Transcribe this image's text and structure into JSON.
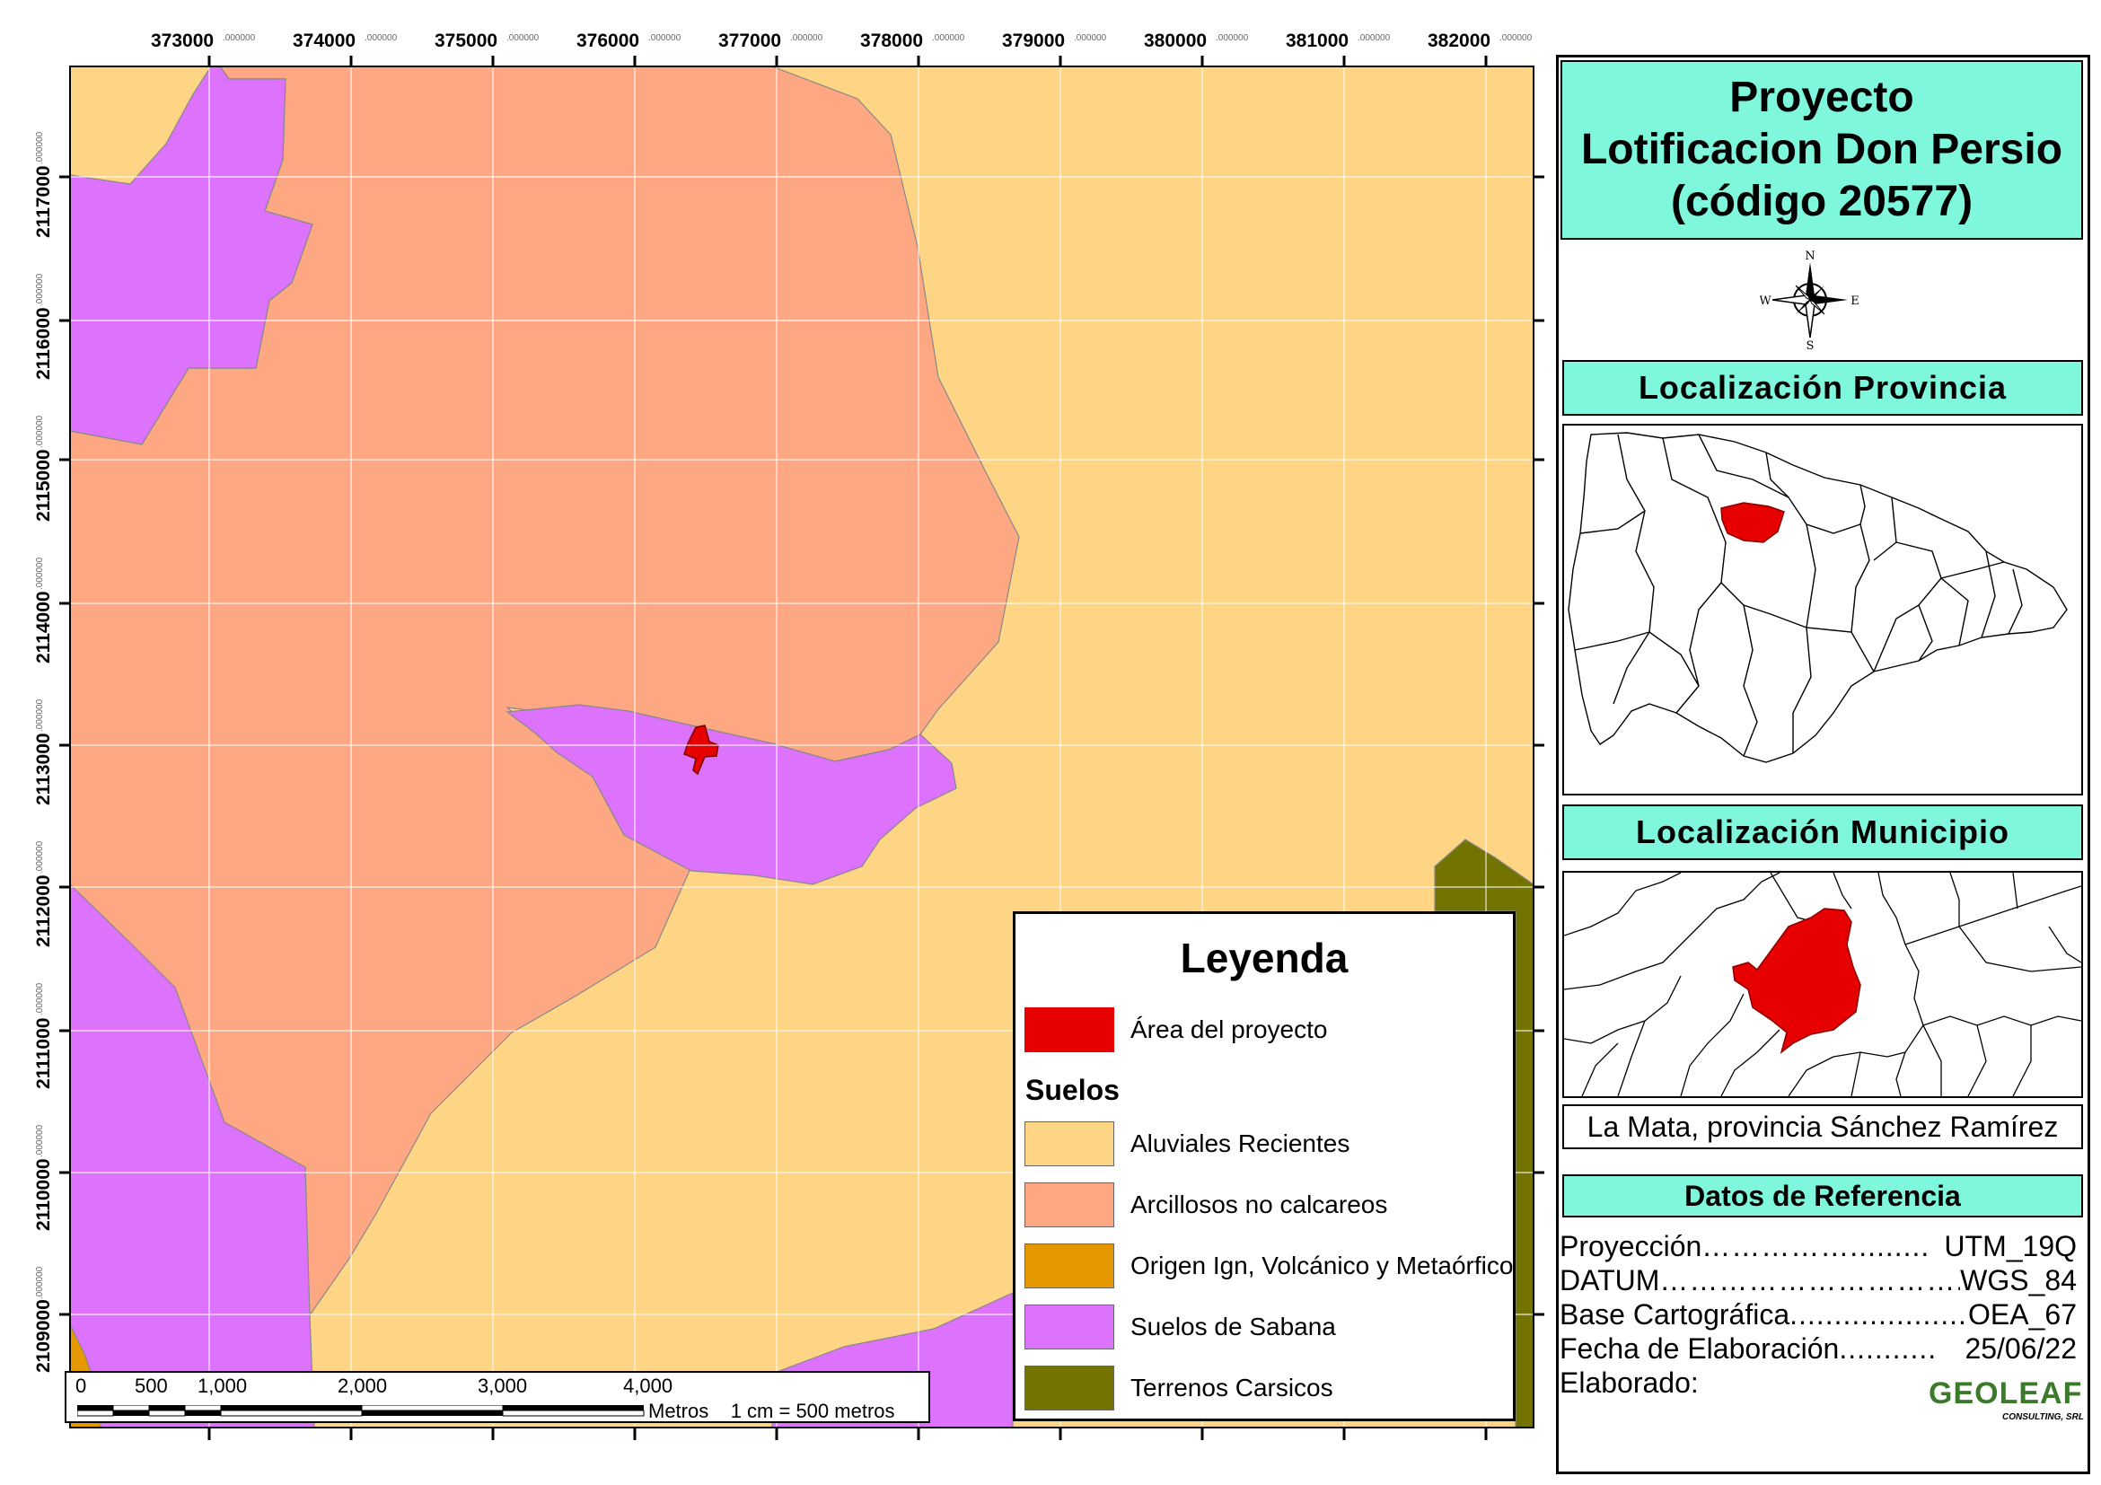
{
  "map": {
    "x_ticks": [
      "373000",
      "374000",
      "375000",
      "376000",
      "377000",
      "378000",
      "379000",
      "380000",
      "381000",
      "382000"
    ],
    "y_ticks": [
      "2117000",
      "2116000",
      "2115000",
      "2114000",
      "2113000",
      "2112000",
      "2111000",
      "2110000",
      "2109000"
    ],
    "tick_suffix": ".000000"
  },
  "title": {
    "line1": "Proyecto",
    "line2": "Lotificacion Don Persio",
    "line3": "(código 20577)"
  },
  "north_arrow": {
    "n": "N",
    "s": "S",
    "e": "E",
    "w": "W"
  },
  "province_heading": "Localización Provincia",
  "municipality_heading": "Localización Municipio",
  "municipality_label": "La Mata, provincia Sánchez Ramírez",
  "reference": {
    "heading": "Datos de Referencia",
    "rows": [
      {
        "key": "Proyección",
        "dots": "…………….........",
        "value": "UTM_19Q"
      },
      {
        "key": "DATUM",
        "dots": "…………………………..",
        "value": "WGS_84"
      },
      {
        "key": "Base Cartográfica",
        "dots": "......................",
        "value": "OEA_67"
      },
      {
        "key": "Fecha de Elaboración",
        "dots": "...........",
        "value": "25/06/22"
      },
      {
        "key": "Elaborado:",
        "dots": "",
        "value": ""
      }
    ]
  },
  "logo": {
    "main": "GEOLEAF",
    "sub": "CONSULTING, SRL"
  },
  "legend": {
    "title": "Leyenda",
    "project_label": "Área del proyecto",
    "group_label": "Suelos",
    "items": [
      {
        "label": "Aluviales Recientes",
        "color": "#fed585"
      },
      {
        "label": "Arcillosos no calcareos",
        "color": "#fea783"
      },
      {
        "label": "Origen Ign, Volcánico y Metaórfico",
        "color": "#e59800"
      },
      {
        "label": "Suelos de Sabana",
        "color": "#dd72fd"
      },
      {
        "label": "Terrenos Carsicos",
        "color": "#737300"
      }
    ],
    "project_color": "#e60000"
  },
  "scalebar": {
    "ticks": [
      "0",
      "500",
      "1,000",
      "2,000",
      "3,000",
      "4,000"
    ],
    "units": "Metros",
    "ratio": "1 cm = 500 metros"
  }
}
